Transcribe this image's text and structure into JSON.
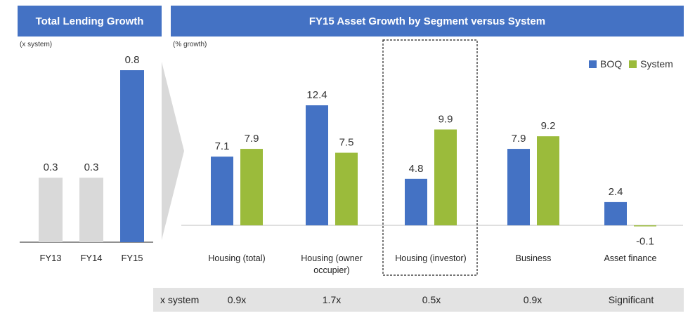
{
  "left_panel": {
    "title": "Total Lending Growth",
    "unit": "(x system)"
  },
  "right_panel": {
    "title": "FY15 Asset Growth by Segment versus System",
    "unit": "(% growth)"
  },
  "x_system_row": {
    "label": "x system",
    "values": [
      "0.9x",
      "1.7x",
      "0.5x",
      "0.9x",
      "Significant"
    ]
  },
  "colors": {
    "banner": "#4472c4",
    "boq": "#4472c4",
    "system": "#9bbb3b",
    "grey_bar": "#d9d9d9",
    "highlight_bar": "#4472c4",
    "row_bg": "#e3e3e3"
  },
  "chart_data": [
    {
      "type": "bar",
      "title": "Total Lending Growth",
      "ylabel": "(x system)",
      "categories": [
        "FY13",
        "FY14",
        "FY15"
      ],
      "values": [
        0.3,
        0.3,
        0.8
      ],
      "data_labels": [
        "0.3",
        "0.3",
        "0.8"
      ],
      "highlight_index": 2,
      "ylim": [
        0,
        0.8
      ],
      "grid": false
    },
    {
      "type": "bar",
      "title": "FY15 Asset Growth by Segment versus System",
      "ylabel": "(% growth)",
      "categories": [
        "Housing (total)",
        "Housing (owner occupier)",
        "Housing (investor)",
        "Business",
        "Asset finance"
      ],
      "category_lines": [
        [
          "Housing (total)"
        ],
        [
          "Housing (owner",
          "occupier)"
        ],
        [
          "Housing (investor)"
        ],
        [
          "Business"
        ],
        [
          "Asset finance"
        ]
      ],
      "series": [
        {
          "name": "BOQ",
          "values": [
            7.1,
            12.4,
            4.8,
            7.9,
            2.4
          ],
          "labels": [
            "7.1",
            "12.4",
            "4.8",
            "7.9",
            "2.4"
          ]
        },
        {
          "name": "System",
          "values": [
            7.9,
            7.5,
            9.9,
            9.2,
            -0.1
          ],
          "labels": [
            "7.9",
            "7.5",
            "9.9",
            "9.2",
            "-0.1"
          ]
        }
      ],
      "highlighted_category": "Housing (investor)",
      "legend": "top-right",
      "grid": false
    }
  ]
}
